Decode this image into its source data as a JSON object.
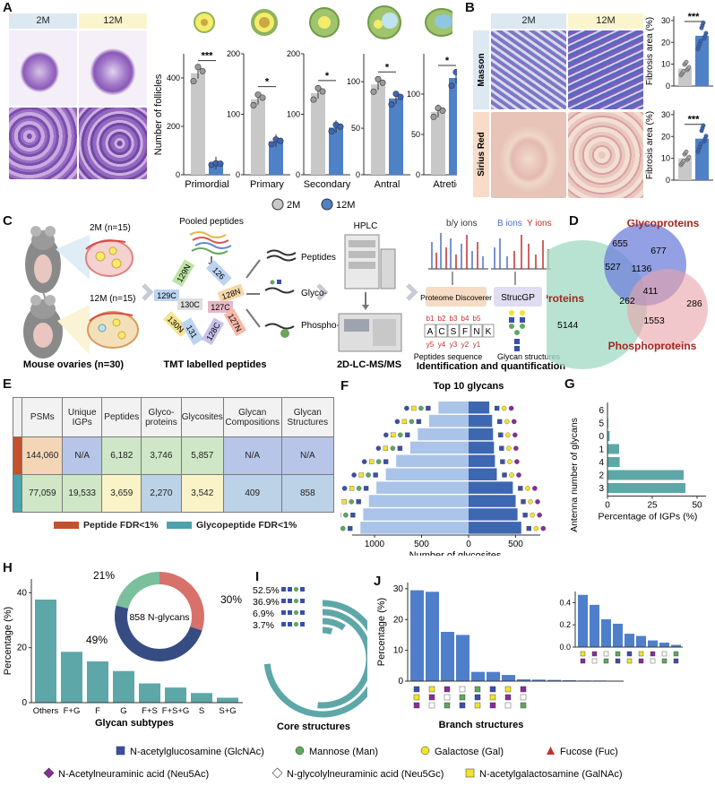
{
  "panels": {
    "A": "A",
    "B": "B",
    "C": "C",
    "D": "D",
    "E": "E",
    "F": "F",
    "G": "G",
    "H": "H",
    "I": "I",
    "J": "J"
  },
  "groups": {
    "young": "2M",
    "old": "12M"
  },
  "colors": {
    "young": "#c8c8c8",
    "old": "#4f81c7",
    "teal": "#5ea7a8",
    "lightblue": "#a9c4e8",
    "darkblue": "#3d67b1",
    "green": "#7cbf9c",
    "red": "#d9716b",
    "navy": "#384c84"
  },
  "panelA": {
    "ylabel": "Number of follicles",
    "legend": [
      "2M",
      "12M"
    ],
    "charts": [
      {
        "name": "Primordial",
        "ticks": [
          "0",
          "200",
          "400"
        ],
        "max": 500,
        "values": [
          420,
          45
        ],
        "sig": "***"
      },
      {
        "name": "Primary",
        "ticks": [
          "0",
          "100",
          "200"
        ],
        "max": 200,
        "values": [
          125,
          55
        ],
        "sig": "*"
      },
      {
        "name": "Secondary",
        "ticks": [
          "0",
          "100",
          "200"
        ],
        "max": 200,
        "values": [
          135,
          78
        ],
        "sig": "*"
      },
      {
        "name": "Antral",
        "ticks": [
          "0",
          "50",
          "100"
        ],
        "max": 130,
        "values": [
          97,
          82
        ],
        "sig": "*"
      },
      {
        "name": "Atretic",
        "ticks": [
          "0",
          "50",
          "100"
        ],
        "max": 150,
        "values": [
          78,
          120
        ],
        "sig": "*"
      }
    ]
  },
  "panelB": {
    "rows": [
      "Masson",
      "Sirius Red"
    ],
    "charts": [
      {
        "ylabel": "Fibrosis area (%)",
        "ticks": [
          "0",
          "10",
          "20",
          "30"
        ],
        "max": 32,
        "values": [
          8,
          23
        ],
        "sig": "***"
      },
      {
        "ylabel": "Fibrosis area (%)",
        "ticks": [
          "0",
          "10",
          "20",
          "30"
        ],
        "max": 32,
        "values": [
          10,
          19
        ],
        "sig": "***"
      }
    ]
  },
  "panelC": {
    "mouse_young": "2M (n=15)",
    "mouse_old": "12M (n=15)",
    "pooled": "Pooled peptides",
    "tmt": [
      "129N",
      "126",
      "129C",
      "128N",
      "130C",
      "127C",
      "130N",
      "127N",
      "131",
      "128C"
    ],
    "fractions": [
      "Peptides",
      "Glyco-",
      "Phospho-"
    ],
    "hplc": "HPLC",
    "ions_left": "b/y ions",
    "ions_right_b": "B ions",
    "ions_right_y": "Y ions",
    "proteome": "Proteome Discoverer",
    "strucgp": "StrucGP",
    "seq": [
      "A",
      "C",
      "S",
      "F",
      "N",
      "K"
    ],
    "b_ions": [
      "b1",
      "b2",
      "b3",
      "b4",
      "b5"
    ],
    "y_ions": [
      "y5",
      "y4",
      "y3",
      "y2",
      "y1"
    ],
    "peptide_seq": "Peptides sequence",
    "glycan_struct": "Glycan structures",
    "captions": [
      "Mouse ovaries (n=30)",
      "TMT labelled peptides",
      "2D-LC-MS/MS",
      "Identification and quantification"
    ]
  },
  "panelD": {
    "sets": [
      "Glycoproteins",
      "Proteins",
      "Phosphoproteins"
    ],
    "numbers": [
      "655",
      "677",
      "527",
      "1136",
      "411",
      "262",
      "1553",
      "286",
      "5144"
    ]
  },
  "panelE": {
    "headers": [
      "PSMs",
      "Unique IGPs",
      "Peptides",
      "Glyco-proteins",
      "Glycosites",
      "Glycan Compositions",
      "Glycan Structures"
    ],
    "rows": [
      [
        "144,060",
        "N/A",
        "6,182",
        "3,746",
        "5,857",
        "N/A",
        "N/A"
      ],
      [
        "77,059",
        "19,533",
        "3,659",
        "2,270",
        "3,542",
        "409",
        "858"
      ]
    ],
    "legend": [
      "Peptide FDR<1%",
      "Glycopeptide FDR<1%"
    ]
  },
  "panelF": {
    "title": "Top 10 glycans",
    "xlabel": "Number of glycosites",
    "ticks": [
      "1000",
      "500",
      "0",
      "500"
    ],
    "left": [
      1150,
      1120,
      1060,
      980,
      880,
      770,
      620,
      540,
      420,
      320
    ],
    "right": [
      560,
      520,
      500,
      470,
      300,
      280,
      270,
      260,
      250,
      220
    ]
  },
  "panelG": {
    "ylabel": "Antenna number of glycans",
    "xlabel": "Percentage of IGPs (%)",
    "ticks": [
      "0",
      "25",
      "50"
    ],
    "categories": [
      "6",
      "5",
      "0",
      "1",
      "4",
      "2",
      "3"
    ],
    "values": [
      0.3,
      0.5,
      1.2,
      6.5,
      6.8,
      42.5,
      43.5
    ]
  },
  "panelH": {
    "ylabel": "Percentage (%)",
    "xlabel": "Glycan subtypes",
    "ticks": [
      "0",
      "20",
      "40"
    ],
    "categories": [
      "Others",
      "F+G",
      "F",
      "G",
      "F+S",
      "F+S+G",
      "S",
      "S+G"
    ],
    "values": [
      37.5,
      18.5,
      15,
      11.5,
      7,
      5.5,
      3.5,
      1.8
    ],
    "donut_center": "858 N-glycans",
    "donut_pcts": [
      "21%",
      "30%",
      "49%"
    ],
    "donut_values": [
      21,
      30,
      49
    ]
  },
  "panelI": {
    "caption": "Core structures",
    "pcts": [
      "52.5%",
      "36.9%",
      "6.9%",
      "3.7%"
    ],
    "values": [
      52.5,
      36.9,
      6.9,
      3.7
    ]
  },
  "panelJ": {
    "ylabel": "Percentage (%)",
    "xlabel": "Branch structures",
    "ticks": [
      "0",
      "10",
      "20",
      "30"
    ],
    "values": [
      29.5,
      29,
      16,
      15,
      3,
      3,
      2,
      0.6,
      0.5,
      0.4,
      0.3,
      0.2,
      0.2,
      0.15
    ],
    "inset_ticks": [
      "0.0",
      "0.2",
      "0.4"
    ],
    "inset_values": [
      0.47,
      0.38,
      0.25,
      0.21,
      0.12,
      0.1,
      0.06,
      0.04,
      0.02
    ]
  },
  "legend": [
    {
      "shape": "square",
      "color": "#3b4fa9",
      "label": "N-acetylglucosamine (GlcNAc)"
    },
    {
      "shape": "circle",
      "color": "#5fa85e",
      "label": "Mannose (Man)"
    },
    {
      "shape": "circle",
      "color": "#f2e330",
      "label": "Galactose (Gal)"
    },
    {
      "shape": "triangle",
      "color": "#c0302b",
      "label": "Fucose (Fuc)"
    },
    {
      "shape": "diamond",
      "color": "#8a2c9a",
      "label": "N-Acetylneuraminic acid (Neu5Ac)"
    },
    {
      "shape": "diamond",
      "color": "#ffffff",
      "label": "N-glycolylneuraminic acid (Neu5Gc)"
    },
    {
      "shape": "square",
      "color": "#f2e330",
      "label": "N-acetylgalactosamine (GalNAc)"
    }
  ]
}
